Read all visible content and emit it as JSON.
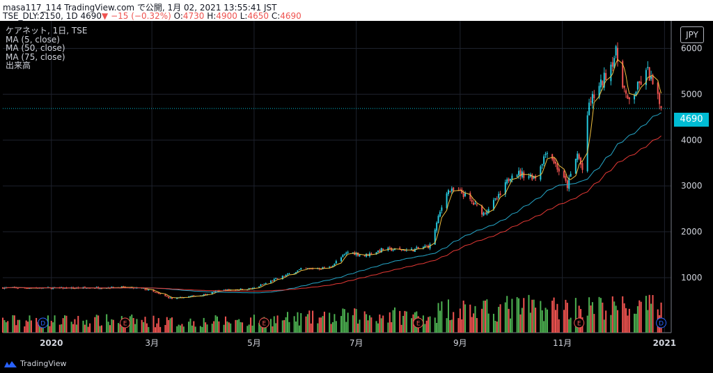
{
  "header": {
    "line1": "masa117_114 TradingView.com で公開, 1月 02, 2021 13:55:41 JST",
    "line2_symbol": "TSE_DLY:2150, 1D 4690",
    "line2_change": "−15 (−0.32%)",
    "line2_o_label": "O:",
    "line2_o": "4730",
    "line2_h_label": "H:",
    "line2_h": "4900",
    "line2_l_label": "L:",
    "line2_l": "4650",
    "line2_c_label": "C:",
    "line2_c": "4690"
  },
  "legend": [
    "ケアネット, 1日, TSE",
    "MA (5, close)",
    "MA (50, close)",
    "MA (75, close)",
    "出来高"
  ],
  "currency": "JPY",
  "last_price": "4690",
  "brand": "TradingView",
  "colors": {
    "up": "#26c6da",
    "down": "#ef5350",
    "ma5": "#f0c040",
    "ma50": "#26a7c9",
    "ma75": "#e53935",
    "vol_up": "#4caf50",
    "vol_down": "#ef5350",
    "grid": "#1e222d",
    "price_line": "#00bcd4"
  },
  "chart_data": {
    "type": "candlestick",
    "y_axis": {
      "ticks": [
        1000,
        2000,
        3000,
        4000,
        5000,
        6000
      ],
      "labels": [
        "1000",
        "2000",
        "3000",
        "4000",
        "5000",
        "6000"
      ],
      "range": [
        -200,
        6600
      ]
    },
    "x_axis": {
      "labels": [
        "2020",
        "3月",
        "5月",
        "7月",
        "9月",
        "11月",
        "2021"
      ],
      "label_dates": [
        "2020-01-01",
        "2020-03-01",
        "2020-05-01",
        "2020-07-01",
        "2020-09-01",
        "2020-11-01",
        "2021-01-01"
      ]
    },
    "close_trajectory": [
      [
        "2019-12-03",
        780
      ],
      [
        "2020-01-15",
        770
      ],
      [
        "2020-02-10",
        790
      ],
      [
        "2020-02-25",
        760
      ],
      [
        "2020-03-13",
        540
      ],
      [
        "2020-03-31",
        620
      ],
      [
        "2020-04-10",
        720
      ],
      [
        "2020-04-30",
        760
      ],
      [
        "2020-05-15",
        980
      ],
      [
        "2020-05-29",
        1180
      ],
      [
        "2020-06-15",
        1220
      ],
      [
        "2020-06-26",
        1560
      ],
      [
        "2020-07-06",
        1480
      ],
      [
        "2020-07-17",
        1620
      ],
      [
        "2020-08-03",
        1600
      ],
      [
        "2020-08-14",
        1700
      ],
      [
        "2020-08-24",
        2900
      ],
      [
        "2020-09-02",
        2850
      ],
      [
        "2020-09-15",
        2400
      ],
      [
        "2020-09-25",
        2800
      ],
      [
        "2020-10-02",
        3300
      ],
      [
        "2020-10-16",
        3200
      ],
      [
        "2020-10-23",
        3800
      ],
      [
        "2020-11-04",
        3000
      ],
      [
        "2020-11-10",
        3700
      ],
      [
        "2020-11-13",
        3350
      ],
      [
        "2020-11-17",
        4800
      ],
      [
        "2020-11-24",
        5200
      ],
      [
        "2020-12-03",
        5900
      ],
      [
        "2020-12-10",
        4800
      ],
      [
        "2020-12-22",
        5500
      ],
      [
        "2020-12-30",
        4690
      ]
    ],
    "moving_averages": [
      {
        "name": "MA (5, close)",
        "period": 5
      },
      {
        "name": "MA (50, close)",
        "period": 50
      },
      {
        "name": "MA (75, close)",
        "period": 75
      }
    ],
    "event_markers": [
      {
        "label": "D",
        "date": "2019-12-27"
      },
      {
        "label": "E",
        "date": "2020-02-14"
      },
      {
        "label": "E",
        "date": "2020-05-07"
      },
      {
        "label": "E",
        "date": "2020-08-07"
      },
      {
        "label": "E",
        "date": "2020-11-11"
      },
      {
        "label": "D",
        "date": "2020-12-30"
      }
    ],
    "volume_axis_max_label": "1000",
    "last_close": 4690
  }
}
